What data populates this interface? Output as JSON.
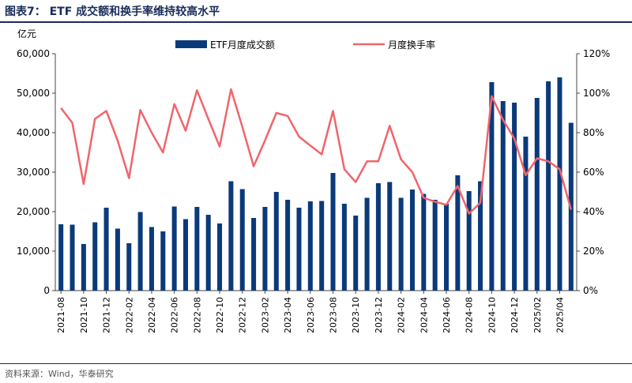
{
  "figure": {
    "title": "图表7：  ETF 成交额和换手率维持较高水平",
    "source": "资料来源：Wind，华泰研究"
  },
  "colors": {
    "bar": "#0b3a7a",
    "line": "#f0656b",
    "rule": "#1a2c5a"
  },
  "chart_data": {
    "type": "bar",
    "y_left_unit": "亿元",
    "y_left_lim": [
      0,
      60000
    ],
    "y_left_ticks": [
      "0",
      "10,000",
      "20,000",
      "30,000",
      "40,000",
      "50,000",
      "60,000"
    ],
    "y_right_lim": [
      0,
      120
    ],
    "y_right_ticks": [
      "0%",
      "20%",
      "40%",
      "60%",
      "80%",
      "100%",
      "120%"
    ],
    "legend_position": "top",
    "x_tick_labels": [
      "2021-08",
      "2021-10",
      "2021-12",
      "2022-02",
      "2022-04",
      "2022-06",
      "2022-08",
      "2022-10",
      "2022-12",
      "2023-02",
      "2023-04",
      "2023-06",
      "2023-08",
      "2023-10",
      "2023-12",
      "2024-02",
      "2024-04",
      "2024-06",
      "2024-08",
      "2024-10",
      "2024-12",
      "2025/02",
      "2025/04"
    ],
    "categories": [
      "2021-08",
      "2021-09",
      "2021-10",
      "2021-11",
      "2021-12",
      "2022-01",
      "2022-02",
      "2022-03",
      "2022-04",
      "2022-05",
      "2022-06",
      "2022-07",
      "2022-08",
      "2022-09",
      "2022-10",
      "2022-11",
      "2022-12",
      "2023-01",
      "2023-02",
      "2023-03",
      "2023-04",
      "2023-05",
      "2023-06",
      "2023-07",
      "2023-08",
      "2023-09",
      "2023-10",
      "2023-11",
      "2023-12",
      "2024-01",
      "2024-02",
      "2024-03",
      "2024-04",
      "2024-05",
      "2024-06",
      "2024-07",
      "2024-08",
      "2024-09",
      "2024-10",
      "2024-11",
      "2024-12",
      "2025-01",
      "2025-02",
      "2025-03",
      "2025-04",
      "2025-05"
    ],
    "series": [
      {
        "name": "ETF月度成交额",
        "type": "bar",
        "axis": "left",
        "values": [
          16800,
          16700,
          11800,
          17300,
          21000,
          15700,
          12000,
          19900,
          16100,
          15000,
          21300,
          18100,
          21200,
          19200,
          17000,
          27700,
          25700,
          18400,
          21200,
          25000,
          23000,
          21000,
          22600,
          22700,
          29800,
          22000,
          19000,
          23500,
          27200,
          27500,
          23500,
          25600,
          24500,
          23000,
          22000,
          29200,
          25200,
          27700,
          52800,
          48000,
          47600,
          39000,
          48800,
          53000,
          54000,
          42500
        ]
      },
      {
        "name": "月度换手率",
        "type": "line",
        "axis": "right",
        "values": [
          92.5,
          85,
          54,
          87,
          91,
          76,
          57,
          91.5,
          80,
          70,
          94.5,
          81,
          101.5,
          87,
          73,
          102,
          83,
          63,
          76,
          90,
          88.5,
          78,
          73.5,
          69,
          91,
          61.5,
          55,
          65.5,
          65.5,
          83.5,
          66.5,
          60,
          47,
          45,
          43.5,
          53,
          39,
          44.5,
          98.5,
          86.5,
          77,
          58.5,
          67,
          65.5,
          61.5,
          41
        ]
      }
    ]
  }
}
